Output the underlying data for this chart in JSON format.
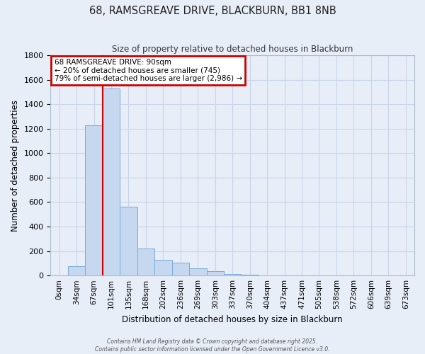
{
  "title": "68, RAMSGREAVE DRIVE, BLACKBURN, BB1 8NB",
  "subtitle": "Size of property relative to detached houses in Blackburn",
  "xlabel": "Distribution of detached houses by size in Blackburn",
  "ylabel": "Number of detached properties",
  "categories": [
    "0sqm",
    "34sqm",
    "67sqm",
    "101sqm",
    "135sqm",
    "168sqm",
    "202sqm",
    "236sqm",
    "269sqm",
    "303sqm",
    "337sqm",
    "370sqm",
    "404sqm",
    "437sqm",
    "471sqm",
    "505sqm",
    "538sqm",
    "572sqm",
    "606sqm",
    "639sqm",
    "673sqm"
  ],
  "values": [
    0,
    75,
    1230,
    1530,
    565,
    220,
    130,
    105,
    60,
    35,
    10,
    5,
    0,
    0,
    0,
    0,
    0,
    0,
    0,
    0,
    0
  ],
  "bar_color": "#c5d8f0",
  "bar_edge_color": "#7aabdb",
  "marker_label": "68 RAMSGREAVE DRIVE: 90sqm",
  "annotation_line1": "← 20% of detached houses are smaller (745)",
  "annotation_line2": "79% of semi-detached houses are larger (2,986) →",
  "marker_color": "#cc0000",
  "box_edge_color": "#cc0000",
  "ylim": [
    0,
    1800
  ],
  "yticks": [
    0,
    200,
    400,
    600,
    800,
    1000,
    1200,
    1400,
    1600,
    1800
  ],
  "grid_color": "#c8d4e8",
  "background_color": "#e8eef8",
  "fig_background": "#e8eef8",
  "footer1": "Contains HM Land Registry data © Crown copyright and database right 2025.",
  "footer2": "Contains public sector information licensed under the Open Government Licence v3.0."
}
